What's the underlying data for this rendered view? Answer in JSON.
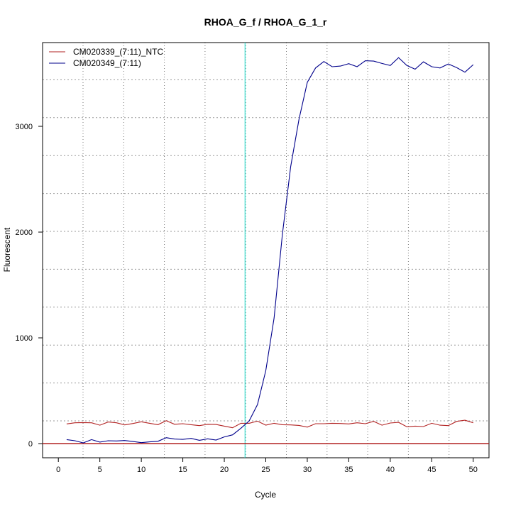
{
  "chart_data": {
    "type": "line",
    "title": "RHOA_G_f / RHOA_G_1_r",
    "xlabel": "Cycle",
    "ylabel": "Fluorescent",
    "xlim": [
      -1.9,
      51.9
    ],
    "ylim": [
      -134,
      3792
    ],
    "x_ticks": [
      0,
      5,
      10,
      15,
      20,
      25,
      30,
      35,
      40,
      45,
      50
    ],
    "y_ticks": [
      0,
      1000,
      2000,
      3000
    ],
    "grid": true,
    "legend_position": "top-left",
    "threshold_y": 0,
    "threshold_color": "#b22222",
    "ct_marker_x": 22.5,
    "ct_marker_color": "#40e0d0",
    "x": [
      1,
      2,
      3,
      4,
      5,
      6,
      7,
      8,
      9,
      10,
      11,
      12,
      13,
      14,
      15,
      16,
      17,
      18,
      19,
      20,
      21,
      22,
      23,
      24,
      25,
      26,
      27,
      28,
      29,
      30,
      31,
      32,
      33,
      34,
      35,
      36,
      37,
      38,
      39,
      40,
      41,
      42,
      43,
      44,
      45,
      46,
      47,
      48,
      49,
      50
    ],
    "series": [
      {
        "name": "CM020339_(7:11)_NTC",
        "color": "#b22222",
        "values": [
          186,
          197,
          199,
          197,
          174,
          204,
          197,
          177,
          190,
          206,
          192,
          179,
          217,
          183,
          188,
          179,
          170,
          183,
          181,
          165,
          150,
          192,
          192,
          212,
          175,
          192,
          179,
          177,
          172,
          156,
          188,
          188,
          192,
          190,
          186,
          197,
          188,
          210,
          174,
          195,
          201,
          159,
          165,
          161,
          192,
          174,
          170,
          210,
          221,
          197
        ]
      },
      {
        "name": "CM020349_(7:11)",
        "color": "#00008b",
        "values": [
          38,
          27,
          7,
          38,
          14,
          27,
          25,
          29,
          20,
          9,
          16,
          22,
          56,
          43,
          40,
          49,
          31,
          45,
          34,
          63,
          83,
          145,
          215,
          369,
          690,
          1188,
          1980,
          2620,
          3067,
          3416,
          3552,
          3613,
          3564,
          3570,
          3593,
          3564,
          3620,
          3617,
          3595,
          3575,
          3650,
          3575,
          3540,
          3610,
          3564,
          3552,
          3590,
          3555,
          3512,
          3583
        ]
      }
    ]
  }
}
